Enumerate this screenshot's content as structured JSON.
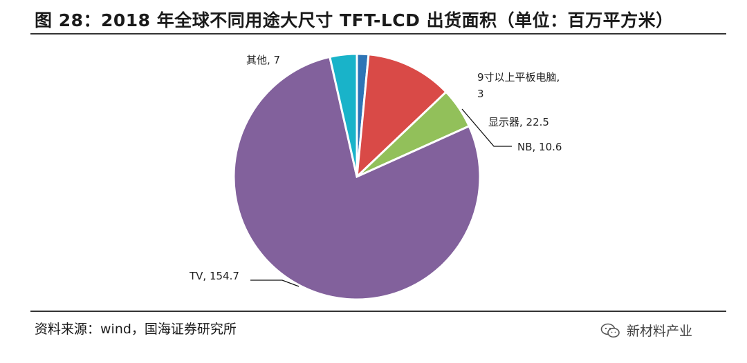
{
  "title": "图 28：2018 年全球不同用途大尺寸 TFT-LCD 出货面积（单位：百万平方米）",
  "source": "资料来源：wind，国海证券研究所",
  "watermark": "新材料产业",
  "chart_data": {
    "type": "pie",
    "title": "图 28：2018 年全球不同用途大尺寸 TFT-LCD 出货面积（单位：百万平方米）",
    "slices": [
      {
        "name": "9寸以上平板电脑",
        "value": 3,
        "color": "#2E75B6",
        "label_lines": [
          "9寸以上平板电脑,",
          "3"
        ]
      },
      {
        "name": "显示器",
        "value": 22.5,
        "color": "#D94A47",
        "label_lines": [
          "显示器, 22.5"
        ]
      },
      {
        "name": "NB",
        "value": 10.6,
        "color": "#92C05A",
        "label_lines": [
          "NB, 10.6"
        ]
      },
      {
        "name": "TV",
        "value": 154.7,
        "color": "#82619C",
        "label_lines": [
          "TV, 154.7"
        ]
      },
      {
        "name": "其他",
        "value": 7,
        "color": "#19B3C9",
        "label_lines": [
          "其他, 7"
        ]
      }
    ],
    "start_angle_deg": 0,
    "direction": "clockwise"
  }
}
